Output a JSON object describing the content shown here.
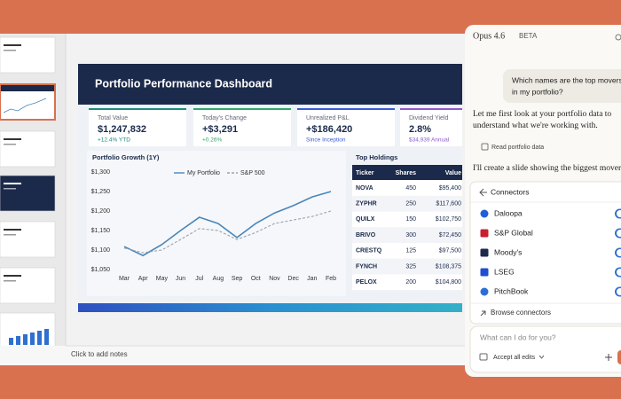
{
  "app": {
    "notes_placeholder": "Click to add notes"
  },
  "slide": {
    "title": "Portfolio Performance Dashboard",
    "kpis": [
      {
        "label": "Total Value",
        "value": "$1,247,832",
        "change": "+12.4% YTD",
        "color": "#1c8c7c"
      },
      {
        "label": "Today's Change",
        "value": "+$3,291",
        "change": "+0.26%",
        "color": "#2fa86b"
      },
      {
        "label": "Unrealized P&L",
        "value": "+$186,420",
        "change": "Since Inception",
        "color": "#3b5bd6"
      },
      {
        "label": "Dividend Yield",
        "value": "2.8%",
        "change": "$34,939 Annual",
        "color": "#8d5bd1"
      }
    ],
    "chart": {
      "type": "line",
      "title": "Portfolio Growth (1Y)",
      "x": [
        "Mar",
        "Apr",
        "May",
        "Jun",
        "Jul",
        "Aug",
        "Sep",
        "Oct",
        "Nov",
        "Dec",
        "Jan",
        "Feb"
      ],
      "series": [
        {
          "name": "My Portfolio",
          "color": "#4a86b8",
          "dashed": false,
          "values": [
            1109,
            1086,
            1114,
            1150,
            1184,
            1168,
            1132,
            1168,
            1195,
            1214,
            1236,
            1250
          ]
        },
        {
          "name": "S&P 500",
          "color": "#9aa3ad",
          "dashed": true,
          "values": [
            1105,
            1093,
            1100,
            1127,
            1155,
            1150,
            1127,
            1145,
            1168,
            1177,
            1186,
            1200
          ]
        }
      ],
      "ylim": [
        1050,
        1300
      ],
      "yticks": [
        {
          "value": 1050,
          "label": "$1,050"
        },
        {
          "value": 1100,
          "label": "$1,100"
        },
        {
          "value": 1150,
          "label": "$1,150"
        },
        {
          "value": 1200,
          "label": "$1,200"
        },
        {
          "value": 1250,
          "label": "$1,250"
        },
        {
          "value": 1300,
          "label": "$1,300"
        }
      ],
      "legend": "top"
    },
    "holdings": {
      "title": "Top Holdings",
      "columns": [
        "Ticker",
        "Shares",
        "Value"
      ],
      "rows": [
        [
          "NOVA",
          450,
          "$95,400"
        ],
        [
          "ZYPHR",
          250,
          "$117,600"
        ],
        [
          "QUILX",
          150,
          "$102,750"
        ],
        [
          "BRIVO",
          300,
          "$72,450"
        ],
        [
          "CRESTQ",
          125,
          "$97,500"
        ],
        [
          "FYNCH",
          325,
          "$108,375"
        ],
        [
          "PELOX",
          200,
          "$104,800"
        ]
      ]
    }
  },
  "assistant": {
    "model": "Opus 4.6",
    "badge": "BETA",
    "user_message": [
      "Which names are the top movers",
      "in my portfolio?"
    ],
    "reply_1": [
      "Let me first look at your portfolio data to",
      "understand what we're working with."
    ],
    "tool_call": "Read portfolio data",
    "reply_2": "I'll create a slide showing the biggest movers.",
    "connectors": {
      "title": "Connectors",
      "items": [
        "Daloopa",
        "S&P Global",
        "Moody's",
        "LSEG",
        "PitchBook"
      ],
      "browse": "Browse connectors"
    },
    "input_placeholder": "What can I do for you?",
    "accept_edits": "Accept all edits"
  }
}
